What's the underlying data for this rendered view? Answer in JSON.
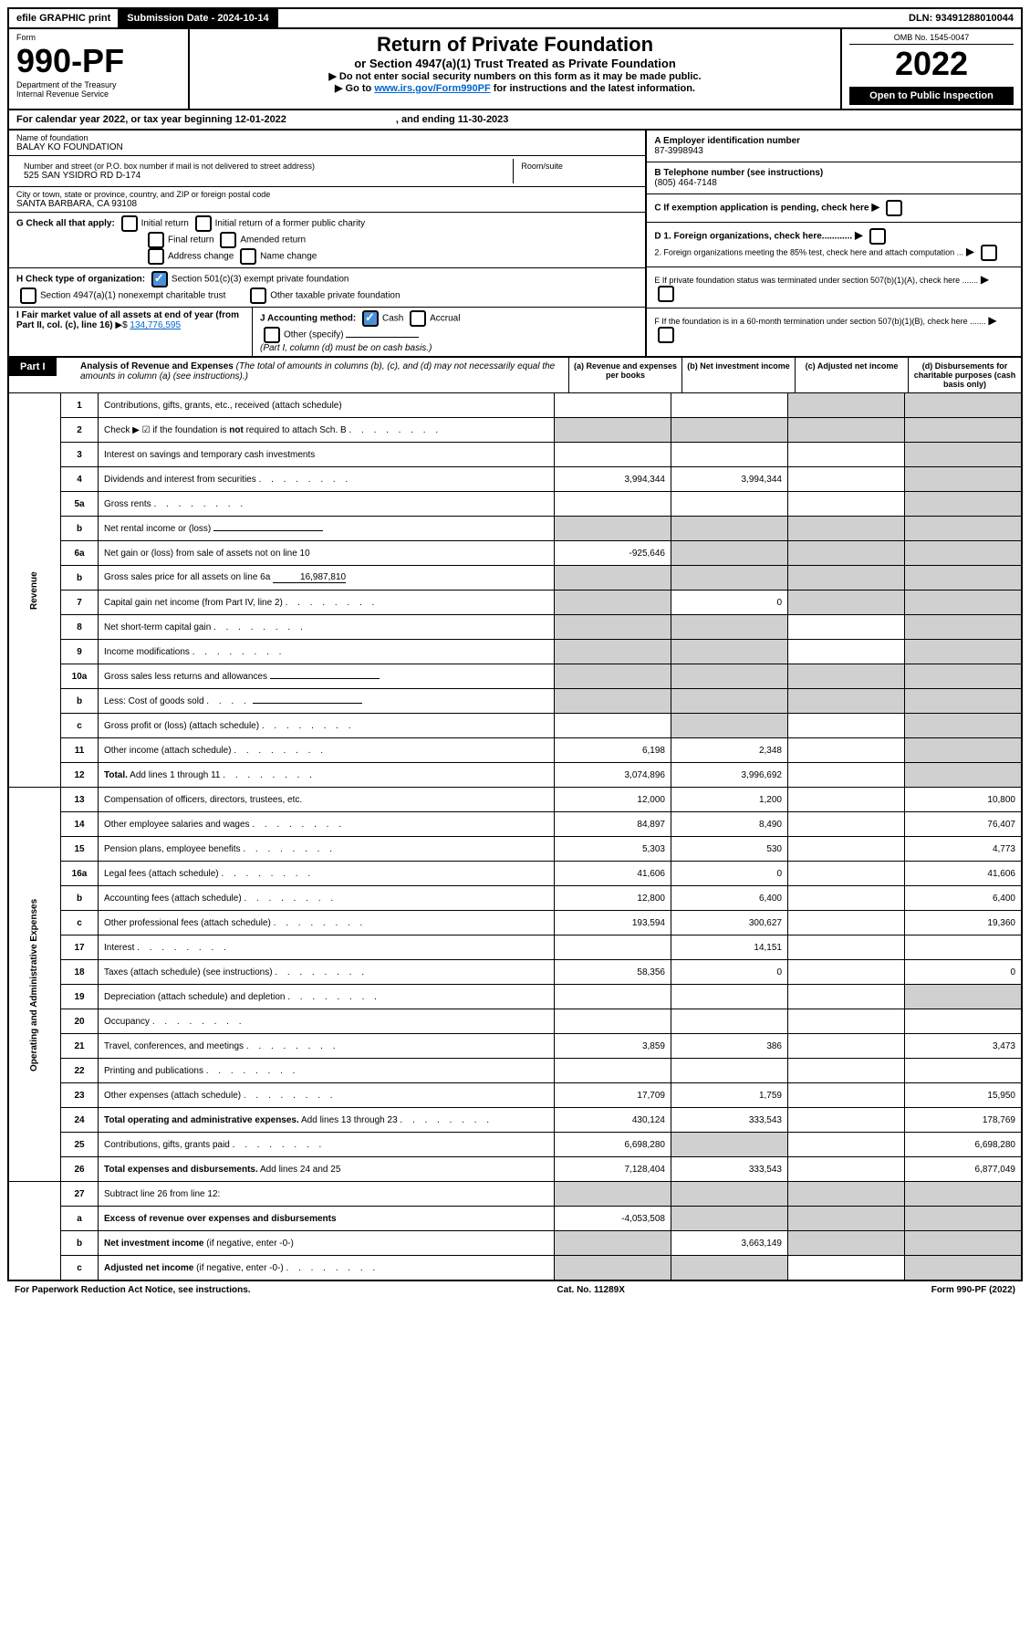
{
  "top": {
    "efile": "efile GRAPHIC print",
    "sub_label": "Submission Date - 2024-10-14",
    "dln": "DLN: 93491288010044"
  },
  "header": {
    "form_label": "Form",
    "form_no": "990-PF",
    "dept": "Department of the Treasury",
    "irs": "Internal Revenue Service",
    "title": "Return of Private Foundation",
    "subtitle": "or Section 4947(a)(1) Trust Treated as Private Foundation",
    "instr1": "▶ Do not enter social security numbers on this form as it may be made public.",
    "instr2_prefix": "▶ Go to ",
    "instr2_link": "www.irs.gov/Form990PF",
    "instr2_suffix": " for instructions and the latest information.",
    "omb": "OMB No. 1545-0047",
    "year": "2022",
    "open": "Open to Public Inspection"
  },
  "calendar": {
    "text1": "For calendar year 2022, or tax year beginning 12-01-2022",
    "text2": ", and ending 11-30-2023"
  },
  "entity": {
    "name_label": "Name of foundation",
    "name": "BALAY KO FOUNDATION",
    "addr_label": "Number and street (or P.O. box number if mail is not delivered to street address)",
    "addr": "525 SAN YSIDRO RD D-174",
    "room_label": "Room/suite",
    "city_label": "City or town, state or province, country, and ZIP or foreign postal code",
    "city": "SANTA BARBARA, CA  93108",
    "g_label": "G Check all that apply:",
    "g_opts": [
      "Initial return",
      "Initial return of a former public charity",
      "Final return",
      "Amended return",
      "Address change",
      "Name change"
    ],
    "h_label": "H Check type of organization:",
    "h1": "Section 501(c)(3) exempt private foundation",
    "h2": "Section 4947(a)(1) nonexempt charitable trust",
    "h3": "Other taxable private foundation",
    "i_label": "I Fair market value of all assets at end of year (from Part II, col. (c), line 16)",
    "i_val": "134,776,595",
    "j_label": "J Accounting method:",
    "j_cash": "Cash",
    "j_accrual": "Accrual",
    "j_other": "Other (specify)",
    "j_note": "(Part I, column (d) must be on cash basis.)"
  },
  "right": {
    "a_label": "A Employer identification number",
    "a_val": "87-3998943",
    "b_label": "B Telephone number (see instructions)",
    "b_val": "(805) 464-7148",
    "c_label": "C If exemption application is pending, check here",
    "d1": "D 1. Foreign organizations, check here............",
    "d2": "2. Foreign organizations meeting the 85% test, check here and attach computation ...",
    "e_label": "E  If private foundation status was terminated under section 507(b)(1)(A), check here .......",
    "f_label": "F  If the foundation is in a 60-month termination under section 507(b)(1)(B), check here .......",
    "arrow": "▶"
  },
  "part1": {
    "label": "Part I",
    "title": "Analysis of Revenue and Expenses",
    "note": "(The total of amounts in columns (b), (c), and (d) may not necessarily equal the amounts in column (a) (see instructions).)",
    "cols": {
      "a": "(a)  Revenue and expenses per books",
      "b": "(b)  Net investment income",
      "c": "(c)  Adjusted net income",
      "d": "(d)  Disbursements for charitable purposes (cash basis only)"
    }
  },
  "sections": {
    "revenue": "Revenue",
    "opex": "Operating and Administrative Expenses"
  },
  "rows": [
    {
      "ln": "1",
      "desc": "Contributions, gifts, grants, etc., received (attach schedule)",
      "a": "",
      "b": "",
      "c_s": true,
      "d_s": true
    },
    {
      "ln": "2",
      "desc": "Check ▶ ☑ if the foundation is <b>not</b> required to attach Sch. B",
      "dots": true,
      "all_s": true
    },
    {
      "ln": "3",
      "desc": "Interest on savings and temporary cash investments",
      "a": "",
      "b": "",
      "c": "",
      "d_s": true
    },
    {
      "ln": "4",
      "desc": "Dividends and interest from securities",
      "dots": true,
      "a": "3,994,344",
      "b": "3,994,344",
      "c": "",
      "d_s": true
    },
    {
      "ln": "5a",
      "desc": "Gross rents",
      "dots": true,
      "a": "",
      "b": "",
      "c": "",
      "d_s": true
    },
    {
      "ln": "b",
      "desc": "Net rental income or (loss)",
      "inline": true,
      "all_s": true
    },
    {
      "ln": "6a",
      "desc": "Net gain or (loss) from sale of assets not on line 10",
      "a": "-925,646",
      "b_s": true,
      "c_s": true,
      "d_s": true
    },
    {
      "ln": "b",
      "desc": "Gross sales price for all assets on line 6a",
      "inline_val": "16,987,810",
      "all_s": true
    },
    {
      "ln": "7",
      "desc": "Capital gain net income (from Part IV, line 2)",
      "dots": true,
      "a_s": true,
      "b": "0",
      "c_s": true,
      "d_s": true
    },
    {
      "ln": "8",
      "desc": "Net short-term capital gain",
      "dots": true,
      "a_s": true,
      "b_s": true,
      "c": "",
      "d_s": true
    },
    {
      "ln": "9",
      "desc": "Income modifications",
      "dots": true,
      "a_s": true,
      "b_s": true,
      "c": "",
      "d_s": true
    },
    {
      "ln": "10a",
      "desc": "Gross sales less returns and allowances",
      "inline": true,
      "all_s": true
    },
    {
      "ln": "b",
      "desc": "Less: Cost of goods sold",
      "dots_short": true,
      "inline": true,
      "all_s": true
    },
    {
      "ln": "c",
      "desc": "Gross profit or (loss) (attach schedule)",
      "dots": true,
      "a": "",
      "b_s": true,
      "c": "",
      "d_s": true
    },
    {
      "ln": "11",
      "desc": "Other income (attach schedule)",
      "dots": true,
      "a": "6,198",
      "b": "2,348",
      "c": "",
      "d_s": true
    },
    {
      "ln": "12",
      "desc": "<b>Total.</b> Add lines 1 through 11",
      "dots": true,
      "a": "3,074,896",
      "b": "3,996,692",
      "c": "",
      "d_s": true
    }
  ],
  "rows_opex": [
    {
      "ln": "13",
      "desc": "Compensation of officers, directors, trustees, etc.",
      "a": "12,000",
      "b": "1,200",
      "c": "",
      "d": "10,800"
    },
    {
      "ln": "14",
      "desc": "Other employee salaries and wages",
      "dots": true,
      "a": "84,897",
      "b": "8,490",
      "c": "",
      "d": "76,407"
    },
    {
      "ln": "15",
      "desc": "Pension plans, employee benefits",
      "dots": true,
      "a": "5,303",
      "b": "530",
      "c": "",
      "d": "4,773"
    },
    {
      "ln": "16a",
      "desc": "Legal fees (attach schedule)",
      "dots": true,
      "a": "41,606",
      "b": "0",
      "c": "",
      "d": "41,606"
    },
    {
      "ln": "b",
      "desc": "Accounting fees (attach schedule)",
      "dots": true,
      "a": "12,800",
      "b": "6,400",
      "c": "",
      "d": "6,400"
    },
    {
      "ln": "c",
      "desc": "Other professional fees (attach schedule)",
      "dots": true,
      "a": "193,594",
      "b": "300,627",
      "c": "",
      "d": "19,360"
    },
    {
      "ln": "17",
      "desc": "Interest",
      "dots": true,
      "a": "",
      "b": "14,151",
      "c": "",
      "d": ""
    },
    {
      "ln": "18",
      "desc": "Taxes (attach schedule) (see instructions)",
      "dots": true,
      "a": "58,356",
      "b": "0",
      "c": "",
      "d": "0"
    },
    {
      "ln": "19",
      "desc": "Depreciation (attach schedule) and depletion",
      "dots": true,
      "a": "",
      "b": "",
      "c": "",
      "d_s": true
    },
    {
      "ln": "20",
      "desc": "Occupancy",
      "dots": true,
      "a": "",
      "b": "",
      "c": "",
      "d": ""
    },
    {
      "ln": "21",
      "desc": "Travel, conferences, and meetings",
      "dots": true,
      "a": "3,859",
      "b": "386",
      "c": "",
      "d": "3,473"
    },
    {
      "ln": "22",
      "desc": "Printing and publications",
      "dots": true,
      "a": "",
      "b": "",
      "c": "",
      "d": ""
    },
    {
      "ln": "23",
      "desc": "Other expenses (attach schedule)",
      "dots": true,
      "a": "17,709",
      "b": "1,759",
      "c": "",
      "d": "15,950"
    },
    {
      "ln": "24",
      "desc": "<b>Total operating and administrative expenses.</b> Add lines 13 through 23",
      "dots": true,
      "a": "430,124",
      "b": "333,543",
      "c": "",
      "d": "178,769"
    },
    {
      "ln": "25",
      "desc": "Contributions, gifts, grants paid",
      "dots": true,
      "a": "6,698,280",
      "b_s": true,
      "c": "",
      "d": "6,698,280"
    },
    {
      "ln": "26",
      "desc": "<b>Total expenses and disbursements.</b> Add lines 24 and 25",
      "a": "7,128,404",
      "b": "333,543",
      "c": "",
      "d": "6,877,049"
    }
  ],
  "rows_bottom": [
    {
      "ln": "27",
      "desc": "Subtract line 26 from line 12:",
      "all_s": true
    },
    {
      "ln": "a",
      "desc": "<b>Excess of revenue over expenses and disbursements</b>",
      "a": "-4,053,508",
      "b_s": true,
      "c_s": true,
      "d_s": true
    },
    {
      "ln": "b",
      "desc": "<b>Net investment income</b> (if negative, enter -0-)",
      "a_s": true,
      "b": "3,663,149",
      "c_s": true,
      "d_s": true
    },
    {
      "ln": "c",
      "desc": "<b>Adjusted net income</b> (if negative, enter -0-)",
      "dots": true,
      "a_s": true,
      "b_s": true,
      "c": "",
      "d_s": true
    }
  ],
  "footer": {
    "left": "For Paperwork Reduction Act Notice, see instructions.",
    "cat": "Cat. No. 11289X",
    "right": "Form 990-PF (2022)"
  }
}
